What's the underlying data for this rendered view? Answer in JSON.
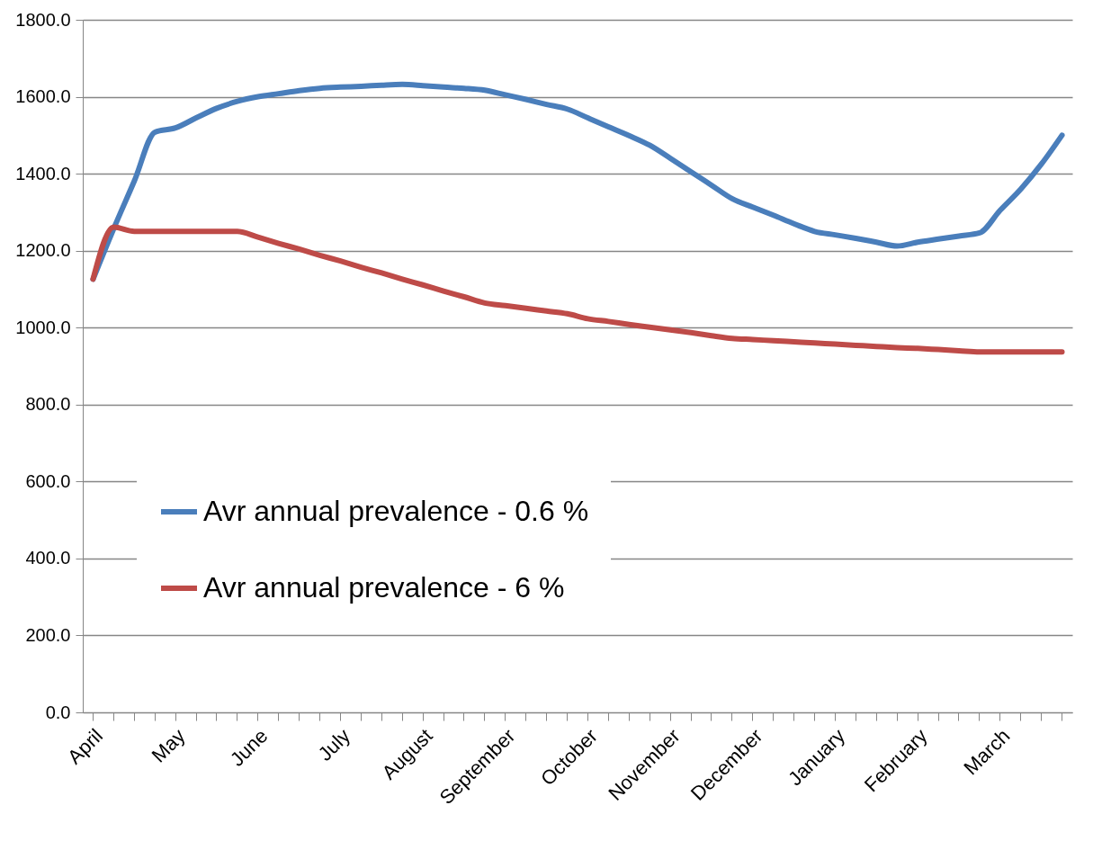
{
  "chart_data": {
    "type": "line",
    "categories": [
      "April",
      null,
      null,
      null,
      "May",
      null,
      null,
      null,
      "June",
      null,
      null,
      null,
      "July",
      null,
      null,
      null,
      "August",
      null,
      null,
      null,
      "September",
      null,
      null,
      null,
      "October",
      null,
      null,
      null,
      "November",
      null,
      null,
      null,
      "December",
      null,
      null,
      null,
      "January",
      null,
      null,
      null,
      "February",
      null,
      null,
      null,
      "March",
      null,
      null,
      null
    ],
    "series": [
      {
        "name": "Avr annual prevalence - 0.6 %",
        "color": "#4a7ebb",
        "values": [
          1126,
          1257,
          1381,
          1508,
          1519,
          1545,
          1570,
          1588,
          1600,
          1608,
          1616,
          1622,
          1625,
          1627,
          1630,
          1632,
          1629,
          1625,
          1622,
          1617,
          1605,
          1593,
          1580,
          1568,
          1545,
          1522,
          1499,
          1474,
          1440,
          1405,
          1370,
          1335,
          1313,
          1292,
          1270,
          1250,
          1241,
          1232,
          1222,
          1212,
          1222,
          1230,
          1238,
          1246,
          1305,
          1360,
          1425,
          1500
        ]
      },
      {
        "name": "Avr annual prevalence - 6 %",
        "color": "#be4b48",
        "values": [
          1126,
          1261,
          1250,
          1250,
          1250,
          1250,
          1250,
          1250,
          1235,
          1219,
          1204,
          1188,
          1173,
          1157,
          1142,
          1126,
          1111,
          1095,
          1080,
          1064,
          1057,
          1050,
          1043,
          1036,
          1023,
          1016,
          1008,
          1001,
          994,
          987,
          979,
          972,
          969,
          966,
          963,
          960,
          957,
          954,
          951,
          948,
          946,
          943,
          940,
          937,
          937,
          937,
          937,
          937
        ]
      }
    ],
    "ylim": [
      0,
      1800
    ],
    "yticks": [
      {
        "value": 0,
        "label": "0.0"
      },
      {
        "value": 200,
        "label": "200.0"
      },
      {
        "value": 400,
        "label": "400.0"
      },
      {
        "value": 600,
        "label": "600.0"
      },
      {
        "value": 800,
        "label": "800.0"
      },
      {
        "value": 1000,
        "label": "1000.0"
      },
      {
        "value": 1200,
        "label": "1200.0"
      },
      {
        "value": 1400,
        "label": "1400.0"
      },
      {
        "value": 1600,
        "label": "1600.0"
      },
      {
        "value": 1800,
        "label": "1800.0"
      }
    ],
    "grid": "y",
    "legend": "bottom left",
    "marker": "none",
    "line_style": "solid"
  }
}
